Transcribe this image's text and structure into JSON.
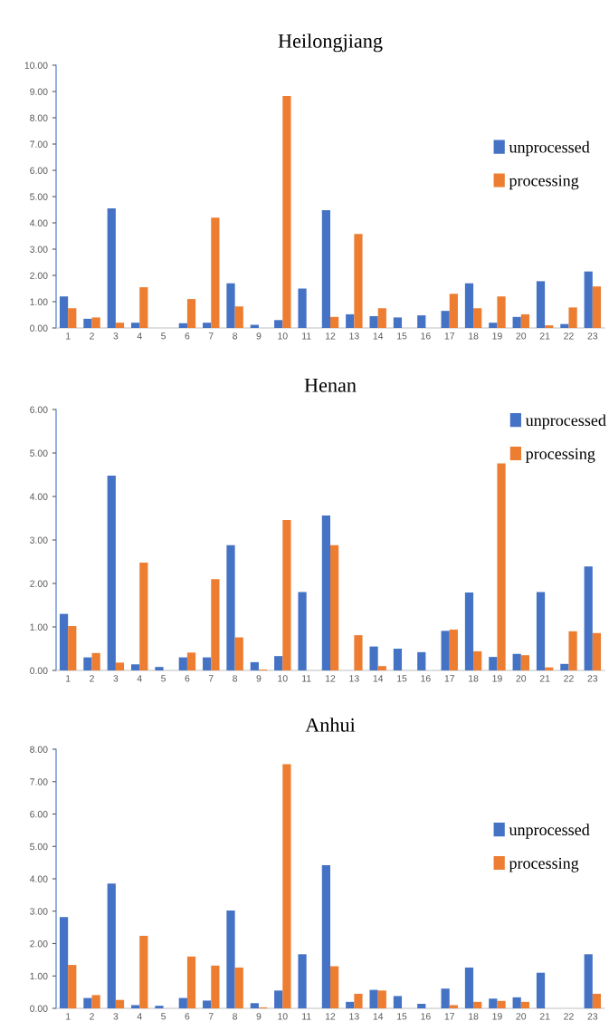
{
  "chart_data": [
    {
      "type": "bar",
      "title": "Heilongjiang",
      "categories": [
        "1",
        "2",
        "3",
        "4",
        "5",
        "6",
        "7",
        "8",
        "9",
        "10",
        "11",
        "12",
        "13",
        "14",
        "15",
        "16",
        "17",
        "18",
        "19",
        "20",
        "21",
        "22",
        "23"
      ],
      "series": [
        {
          "name": "unprocessed",
          "color": "#4472c4",
          "values": [
            1.2,
            0.35,
            4.55,
            0.2,
            0,
            0.18,
            0.2,
            1.7,
            0.12,
            0.3,
            1.5,
            4.48,
            0.52,
            0.45,
            0.4,
            0.48,
            0.65,
            1.7,
            0.2,
            0.42,
            1.78,
            0.15,
            2.15
          ]
        },
        {
          "name": "processing",
          "color": "#ed7d31",
          "values": [
            0.75,
            0.4,
            0.2,
            1.55,
            0,
            1.1,
            4.2,
            0.82,
            0,
            8.83,
            0,
            0.42,
            3.58,
            0.75,
            0,
            0,
            1.3,
            0.75,
            1.2,
            0.52,
            0.1,
            0.78,
            1.58
          ]
        }
      ],
      "ylim": [
        0,
        10
      ],
      "yticks": [
        {
          "value": 0,
          "label": "0.00"
        },
        {
          "value": 1,
          "label": "1.00"
        },
        {
          "value": 2,
          "label": "2.00"
        },
        {
          "value": 3,
          "label": "3.00"
        },
        {
          "value": 4,
          "label": "4.00"
        },
        {
          "value": 5,
          "label": "5.00"
        },
        {
          "value": 6,
          "label": "6.00"
        },
        {
          "value": 7,
          "label": "7.00"
        },
        {
          "value": 8,
          "label": "8.00"
        },
        {
          "value": 9,
          "label": "9.00"
        },
        {
          "value": 10,
          "label": "10.00"
        }
      ],
      "legend": "right",
      "grid": false
    },
    {
      "type": "bar",
      "title": "Henan",
      "categories": [
        "1",
        "2",
        "3",
        "4",
        "5",
        "6",
        "7",
        "8",
        "9",
        "10",
        "11",
        "12",
        "13",
        "14",
        "15",
        "16",
        "17",
        "18",
        "19",
        "20",
        "21",
        "22",
        "23"
      ],
      "series": [
        {
          "name": "unprocessed",
          "color": "#4472c4",
          "values": [
            1.3,
            0.3,
            4.48,
            0.14,
            0.08,
            0.3,
            0.3,
            2.88,
            0.19,
            0.33,
            1.8,
            3.56,
            0,
            0.55,
            0.5,
            0.42,
            0.91,
            1.79,
            0.31,
            0.38,
            1.8,
            0.15,
            2.39
          ]
        },
        {
          "name": "processing",
          "color": "#ed7d31",
          "values": [
            1.02,
            0.4,
            0.18,
            2.48,
            0,
            0.41,
            2.1,
            0.76,
            0.02,
            3.46,
            0,
            2.88,
            0.81,
            0.1,
            0,
            0,
            0.94,
            0.44,
            4.76,
            0.35,
            0.07,
            0.9,
            0.86
          ]
        }
      ],
      "ylim": [
        0,
        6
      ],
      "yticks": [
        {
          "value": 0,
          "label": "0.00"
        },
        {
          "value": 1,
          "label": "1.00"
        },
        {
          "value": 2,
          "label": "2.00"
        },
        {
          "value": 3,
          "label": "3.00"
        },
        {
          "value": 4,
          "label": "4.00"
        },
        {
          "value": 5,
          "label": "5.00"
        },
        {
          "value": 6,
          "label": "6.00"
        }
      ],
      "legend": "top right",
      "grid": false
    },
    {
      "type": "bar",
      "title": "Anhui",
      "categories": [
        "1",
        "2",
        "3",
        "4",
        "5",
        "6",
        "7",
        "8",
        "9",
        "10",
        "11",
        "12",
        "13",
        "14",
        "15",
        "16",
        "17",
        "18",
        "19",
        "20",
        "21",
        "22",
        "23"
      ],
      "series": [
        {
          "name": "unprocessed",
          "color": "#4472c4",
          "values": [
            2.82,
            0.32,
            3.85,
            0.1,
            0.08,
            0.32,
            0.24,
            3.02,
            0.16,
            0.55,
            1.67,
            4.42,
            0.2,
            0.57,
            0.38,
            0.14,
            0.61,
            1.26,
            0.3,
            0.34,
            1.1,
            0,
            1.67
          ]
        },
        {
          "name": "processing",
          "color": "#ed7d31",
          "values": [
            1.34,
            0.41,
            0.26,
            2.24,
            0,
            1.6,
            1.32,
            1.26,
            0.03,
            7.54,
            0,
            1.3,
            0.45,
            0.55,
            0,
            0,
            0.1,
            0.2,
            0.23,
            0.2,
            0,
            0,
            0.45
          ]
        }
      ],
      "ylim": [
        0,
        8
      ],
      "yticks": [
        {
          "value": 0,
          "label": "0.00"
        },
        {
          "value": 1,
          "label": "1.00"
        },
        {
          "value": 2,
          "label": "2.00"
        },
        {
          "value": 3,
          "label": "3.00"
        },
        {
          "value": 4,
          "label": "4.00"
        },
        {
          "value": 5,
          "label": "5.00"
        },
        {
          "value": 6,
          "label": "6.00"
        },
        {
          "value": 7,
          "label": "7.00"
        },
        {
          "value": 8,
          "label": "8.00"
        }
      ],
      "legend": "right",
      "grid": false
    }
  ]
}
